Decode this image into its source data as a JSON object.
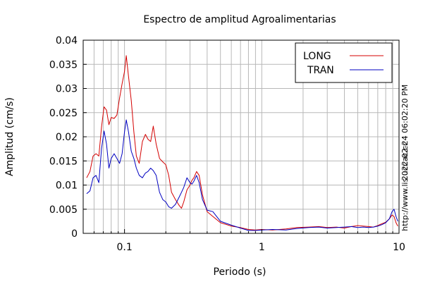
{
  "chart_data": {
    "type": "line",
    "title": "Espectro de amplitud Agroalimentarias",
    "xlabel": "Periodo (s)",
    "ylabel": "Amplitud (cm/s)",
    "x_scale": "log",
    "xlim": [
      0.05,
      10
    ],
    "ylim": [
      0,
      0.04
    ],
    "x_ticks": [
      {
        "value": 0.1,
        "label": "0.1"
      },
      {
        "value": 1,
        "label": "1"
      },
      {
        "value": 10,
        "label": "10"
      }
    ],
    "y_ticks": [
      {
        "value": 0,
        "label": "0"
      },
      {
        "value": 0.005,
        "label": "0.005"
      },
      {
        "value": 0.01,
        "label": "0.01"
      },
      {
        "value": 0.015,
        "label": "0.015"
      },
      {
        "value": 0.02,
        "label": "0.02"
      },
      {
        "value": 0.025,
        "label": "0.025"
      },
      {
        "value": 0.03,
        "label": "0.03"
      },
      {
        "value": 0.035,
        "label": "0.035"
      },
      {
        "value": 0.04,
        "label": "0.04"
      }
    ],
    "grid": true,
    "legend_position": "top-right",
    "series": [
      {
        "name": "LONG",
        "color": "#d40000",
        "points": [
          [
            0.053,
            0.0115
          ],
          [
            0.056,
            0.0128
          ],
          [
            0.059,
            0.016
          ],
          [
            0.062,
            0.0165
          ],
          [
            0.065,
            0.016
          ],
          [
            0.068,
            0.022
          ],
          [
            0.071,
            0.0262
          ],
          [
            0.074,
            0.0255
          ],
          [
            0.077,
            0.0225
          ],
          [
            0.08,
            0.024
          ],
          [
            0.084,
            0.0238
          ],
          [
            0.088,
            0.0245
          ],
          [
            0.092,
            0.028
          ],
          [
            0.096,
            0.031
          ],
          [
            0.1,
            0.0335
          ],
          [
            0.103,
            0.0368
          ],
          [
            0.107,
            0.0325
          ],
          [
            0.112,
            0.0275
          ],
          [
            0.117,
            0.021
          ],
          [
            0.122,
            0.016
          ],
          [
            0.128,
            0.0145
          ],
          [
            0.135,
            0.019
          ],
          [
            0.142,
            0.0205
          ],
          [
            0.148,
            0.0195
          ],
          [
            0.155,
            0.019
          ],
          [
            0.162,
            0.0222
          ],
          [
            0.17,
            0.0185
          ],
          [
            0.18,
            0.0155
          ],
          [
            0.19,
            0.0148
          ],
          [
            0.2,
            0.0142
          ],
          [
            0.21,
            0.012
          ],
          [
            0.22,
            0.0085
          ],
          [
            0.235,
            0.007
          ],
          [
            0.25,
            0.0058
          ],
          [
            0.26,
            0.0052
          ],
          [
            0.27,
            0.0065
          ],
          [
            0.285,
            0.009
          ],
          [
            0.3,
            0.01
          ],
          [
            0.31,
            0.011
          ],
          [
            0.32,
            0.0115
          ],
          [
            0.335,
            0.0128
          ],
          [
            0.35,
            0.012
          ],
          [
            0.37,
            0.008
          ],
          [
            0.4,
            0.0045
          ],
          [
            0.44,
            0.0035
          ],
          [
            0.5,
            0.0022
          ],
          [
            0.6,
            0.0015
          ],
          [
            0.7,
            0.0012
          ],
          [
            0.8,
            0.0008
          ],
          [
            0.9,
            0.0007
          ],
          [
            1.0,
            0.0008
          ],
          [
            1.2,
            0.0007
          ],
          [
            1.5,
            0.0009
          ],
          [
            1.8,
            0.0012
          ],
          [
            2.2,
            0.0013
          ],
          [
            2.6,
            0.0014
          ],
          [
            3.0,
            0.0012
          ],
          [
            3.5,
            0.0013
          ],
          [
            4.0,
            0.0011
          ],
          [
            4.5,
            0.0014
          ],
          [
            5.0,
            0.0016
          ],
          [
            5.5,
            0.0015
          ],
          [
            6.0,
            0.0014
          ],
          [
            6.5,
            0.0013
          ],
          [
            7.0,
            0.0016
          ],
          [
            7.5,
            0.002
          ],
          [
            8.0,
            0.0023
          ],
          [
            8.5,
            0.003
          ],
          [
            8.9,
            0.0038
          ],
          [
            9.2,
            0.0035
          ],
          [
            9.5,
            0.0022
          ],
          [
            9.8,
            0.0015
          ]
        ]
      },
      {
        "name": "TRAN",
        "color": "#0000c0",
        "points": [
          [
            0.053,
            0.0082
          ],
          [
            0.056,
            0.0088
          ],
          [
            0.059,
            0.0115
          ],
          [
            0.062,
            0.012
          ],
          [
            0.065,
            0.0105
          ],
          [
            0.068,
            0.0175
          ],
          [
            0.071,
            0.0212
          ],
          [
            0.074,
            0.0185
          ],
          [
            0.077,
            0.0135
          ],
          [
            0.08,
            0.0155
          ],
          [
            0.084,
            0.0165
          ],
          [
            0.088,
            0.0155
          ],
          [
            0.092,
            0.0145
          ],
          [
            0.096,
            0.0165
          ],
          [
            0.1,
            0.021
          ],
          [
            0.103,
            0.0235
          ],
          [
            0.107,
            0.021
          ],
          [
            0.112,
            0.017
          ],
          [
            0.117,
            0.0155
          ],
          [
            0.122,
            0.0135
          ],
          [
            0.128,
            0.012
          ],
          [
            0.135,
            0.0115
          ],
          [
            0.142,
            0.0125
          ],
          [
            0.148,
            0.0128
          ],
          [
            0.155,
            0.0135
          ],
          [
            0.162,
            0.013
          ],
          [
            0.17,
            0.012
          ],
          [
            0.18,
            0.0085
          ],
          [
            0.19,
            0.007
          ],
          [
            0.2,
            0.0065
          ],
          [
            0.21,
            0.0055
          ],
          [
            0.22,
            0.0052
          ],
          [
            0.235,
            0.006
          ],
          [
            0.25,
            0.0075
          ],
          [
            0.26,
            0.0085
          ],
          [
            0.27,
            0.0095
          ],
          [
            0.285,
            0.0115
          ],
          [
            0.3,
            0.0105
          ],
          [
            0.31,
            0.0102
          ],
          [
            0.32,
            0.0108
          ],
          [
            0.335,
            0.012
          ],
          [
            0.35,
            0.0105
          ],
          [
            0.37,
            0.007
          ],
          [
            0.4,
            0.0048
          ],
          [
            0.44,
            0.0045
          ],
          [
            0.5,
            0.0025
          ],
          [
            0.6,
            0.0017
          ],
          [
            0.7,
            0.0011
          ],
          [
            0.8,
            0.0006
          ],
          [
            0.9,
            0.0006
          ],
          [
            1.0,
            0.0007
          ],
          [
            1.2,
            0.0008
          ],
          [
            1.5,
            0.0007
          ],
          [
            1.8,
            0.001
          ],
          [
            2.2,
            0.0012
          ],
          [
            2.6,
            0.0013
          ],
          [
            3.0,
            0.0011
          ],
          [
            3.5,
            0.0012
          ],
          [
            4.0,
            0.0013
          ],
          [
            4.5,
            0.0014
          ],
          [
            5.0,
            0.0012
          ],
          [
            5.5,
            0.0013
          ],
          [
            6.0,
            0.0012
          ],
          [
            6.5,
            0.0013
          ],
          [
            7.0,
            0.0015
          ],
          [
            7.5,
            0.0018
          ],
          [
            8.0,
            0.0022
          ],
          [
            8.5,
            0.003
          ],
          [
            8.9,
            0.0045
          ],
          [
            9.2,
            0.005
          ],
          [
            9.5,
            0.0035
          ],
          [
            9.8,
            0.0025
          ]
        ]
      }
    ]
  },
  "side_text": {
    "timestamp": "2022-02-24 06:02:20 PM",
    "url": "http://www.lis.ucr.ac.cr"
  }
}
